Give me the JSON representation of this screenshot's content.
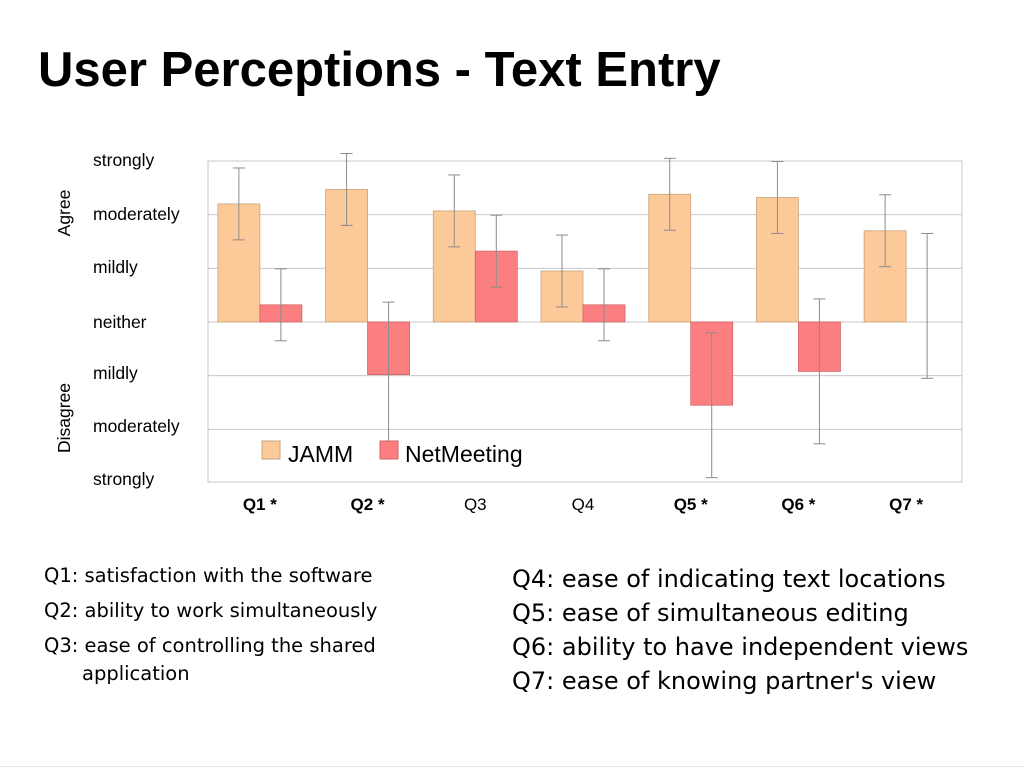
{
  "slide": {
    "title": "User Perceptions - Text Entry"
  },
  "chart_data": {
    "type": "bar",
    "categories": [
      "Q1 *",
      "Q2 *",
      "Q3",
      "Q4",
      "Q5 *",
      "Q6 *",
      "Q7 *"
    ],
    "category_bold": [
      true,
      true,
      false,
      false,
      true,
      true,
      true
    ],
    "y_tick_labels": [
      "strongly",
      "moderately",
      "mildly",
      "neither",
      "mildly",
      "moderately",
      "strongly"
    ],
    "group_labels": [
      "Agree",
      "Disagree"
    ],
    "ylim": [
      -3,
      3
    ],
    "grid": true,
    "legend_position": "bottom-left",
    "series": [
      {
        "name": "JAMM",
        "color": "#fcc998",
        "values": [
          2.2,
          2.47,
          2.07,
          0.95,
          2.38,
          2.32,
          1.7
        ],
        "error": [
          0.67,
          0.67,
          0.67,
          0.67,
          0.67,
          0.67,
          0.67
        ]
      },
      {
        "name": "NetMeeting",
        "color": "#fb7f81",
        "values": [
          0.32,
          -0.98,
          1.32,
          0.32,
          -1.55,
          -0.92,
          null
        ],
        "error": [
          0.67,
          1.35,
          0.67,
          0.67,
          1.35,
          1.35,
          1.35
        ],
        "error_center": [
          0.32,
          -0.98,
          1.32,
          0.32,
          -1.55,
          -0.92,
          0.3
        ]
      }
    ]
  },
  "notes": {
    "left": [
      "Q1: satisfaction with the software",
      "Q2: ability to work simultaneously",
      "Q3: ease of controlling the shared application"
    ],
    "right": [
      "Q4: ease of indicating text locations",
      "Q5: ease of simultaneous editing",
      "Q6: ability to have independent views",
      "Q7: ease of knowing partner's view"
    ]
  }
}
